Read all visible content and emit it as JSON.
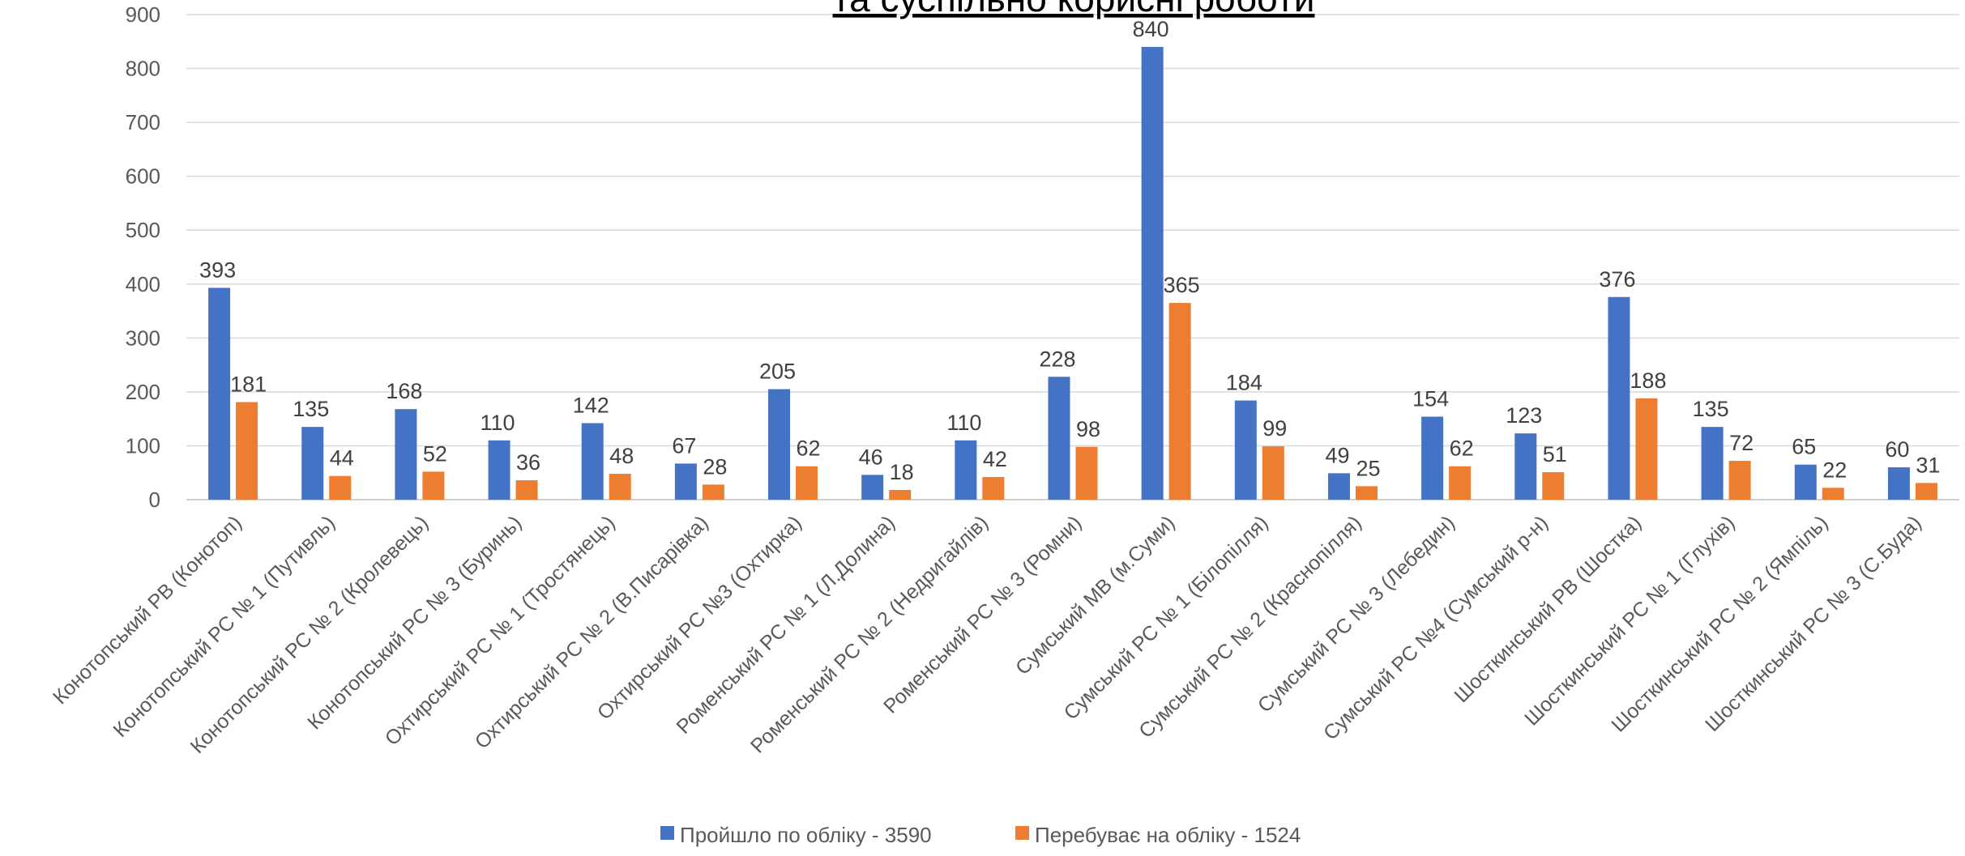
{
  "chart_data": {
    "type": "bar",
    "title": "та суспільно корисні роботи",
    "categories": [
      "Конотопський РВ (Конотоп)",
      "Конотопський РС № 1 (Путивль)",
      "Конотопський РС № 2 (Кролевець)",
      "Конотопський РС № 3 (Буринь)",
      "Охтирський РС № 1 (Тростянець)",
      "Охтирський РС № 2 (В.Писарівка)",
      "Охтирський РС №3 (Охтирка)",
      "Роменський РС № 1 (Л.Долина)",
      "Роменський РС № 2 (Недригайлів)",
      "Роменський РС № 3 (Ромни)",
      "Сумський МВ (м.Суми)",
      "Сумський РС № 1 (Білопілля)",
      "Сумський РС № 2 (Краснопілля)",
      "Сумський РС № 3 (Лебедин)",
      "Сумський РС №4 (Сумський р-н)",
      "Шосткинський РВ (Шостка)",
      "Шосткинський РС № 1 (Глухів)",
      "Шосткинський РС № 2 (Ямпіль)",
      "Шосткинський РС № 3 (С.Буда)"
    ],
    "series": [
      {
        "name": "Пройшло по обліку - 3590",
        "color": "#4472C4",
        "values": [
          393,
          135,
          168,
          110,
          142,
          67,
          205,
          46,
          110,
          228,
          840,
          184,
          49,
          154,
          123,
          376,
          135,
          65,
          60
        ]
      },
      {
        "name": "Перебуває на обліку - 1524",
        "color": "#ED7D31",
        "values": [
          181,
          44,
          52,
          36,
          48,
          28,
          62,
          18,
          42,
          98,
          365,
          99,
          25,
          62,
          51,
          188,
          72,
          22,
          31
        ]
      }
    ],
    "yticks": [
      0,
      100,
      200,
      300,
      400,
      500,
      600,
      700,
      800,
      900
    ],
    "ylim": [
      0,
      900
    ],
    "grid": true,
    "legend_position": "bottom"
  }
}
